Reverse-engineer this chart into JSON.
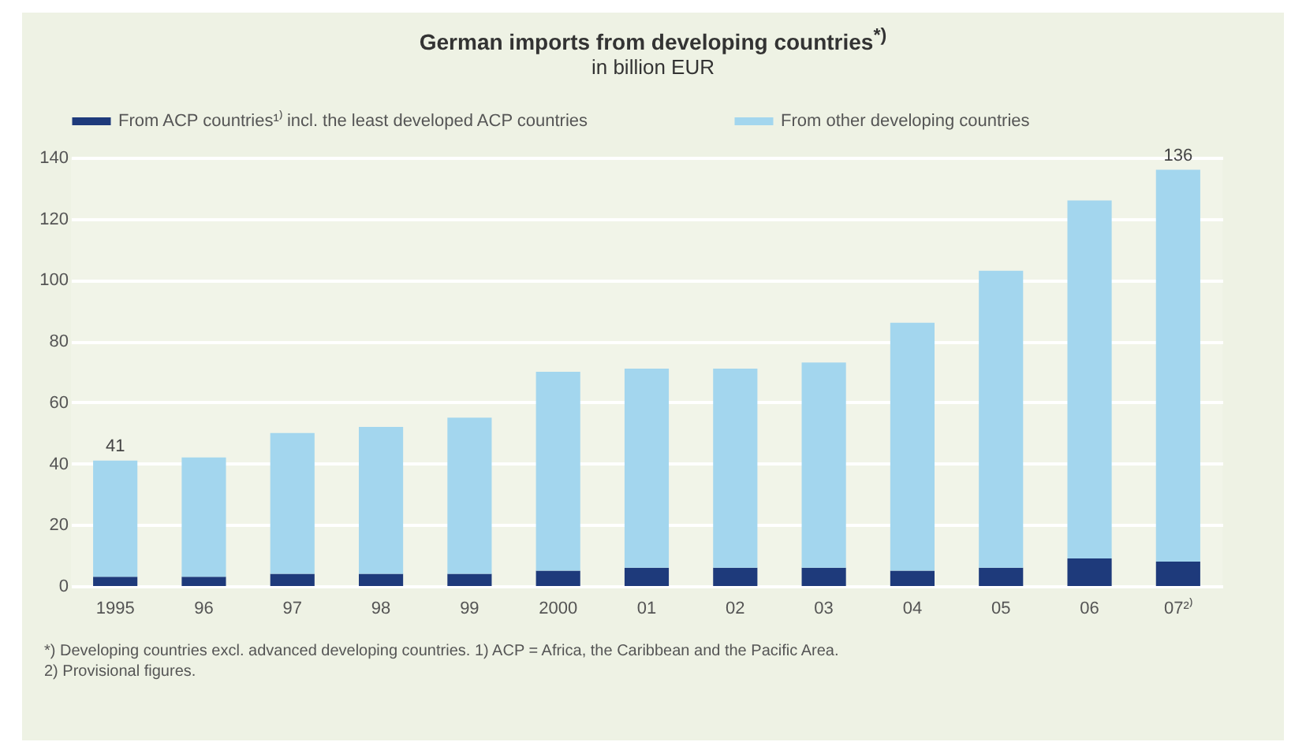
{
  "chart_data": {
    "type": "bar",
    "title": "German imports from developing countries$^{*)}$",
    "subtitle": "in billion EUR",
    "categories": [
      "1995",
      "96",
      "97",
      "98",
      "99",
      "2000",
      "01",
      "02",
      "03",
      "04",
      "05",
      "06",
      "07²⁾"
    ],
    "series": [
      {
        "name": "From ACP countries¹⁾ incl. the least developed ACP countries",
        "color": "#1e3a7b",
        "values": [
          3,
          3,
          4,
          4,
          4,
          5,
          6,
          6,
          6,
          5,
          6,
          9,
          8
        ]
      },
      {
        "name": "From other developing countries",
        "color": "#a3d6ee",
        "values": [
          38,
          39,
          46,
          48,
          51,
          65,
          65,
          65,
          67,
          81,
          97,
          117,
          128
        ]
      }
    ],
    "stacked": true,
    "totals": [
      "41",
      null,
      null,
      null,
      null,
      null,
      null,
      null,
      null,
      null,
      null,
      null,
      "136"
    ],
    "ylim": [
      0,
      140
    ],
    "yticks": [
      0,
      20,
      40,
      60,
      80,
      100,
      120,
      140
    ],
    "grid": "y",
    "legend": "top",
    "annotations": [
      "*) Developing countries excl. advanced developing countries. 1) ACP = Africa, the Caribbean and the Pacific Area.",
      "2) Provisional figures."
    ]
  }
}
